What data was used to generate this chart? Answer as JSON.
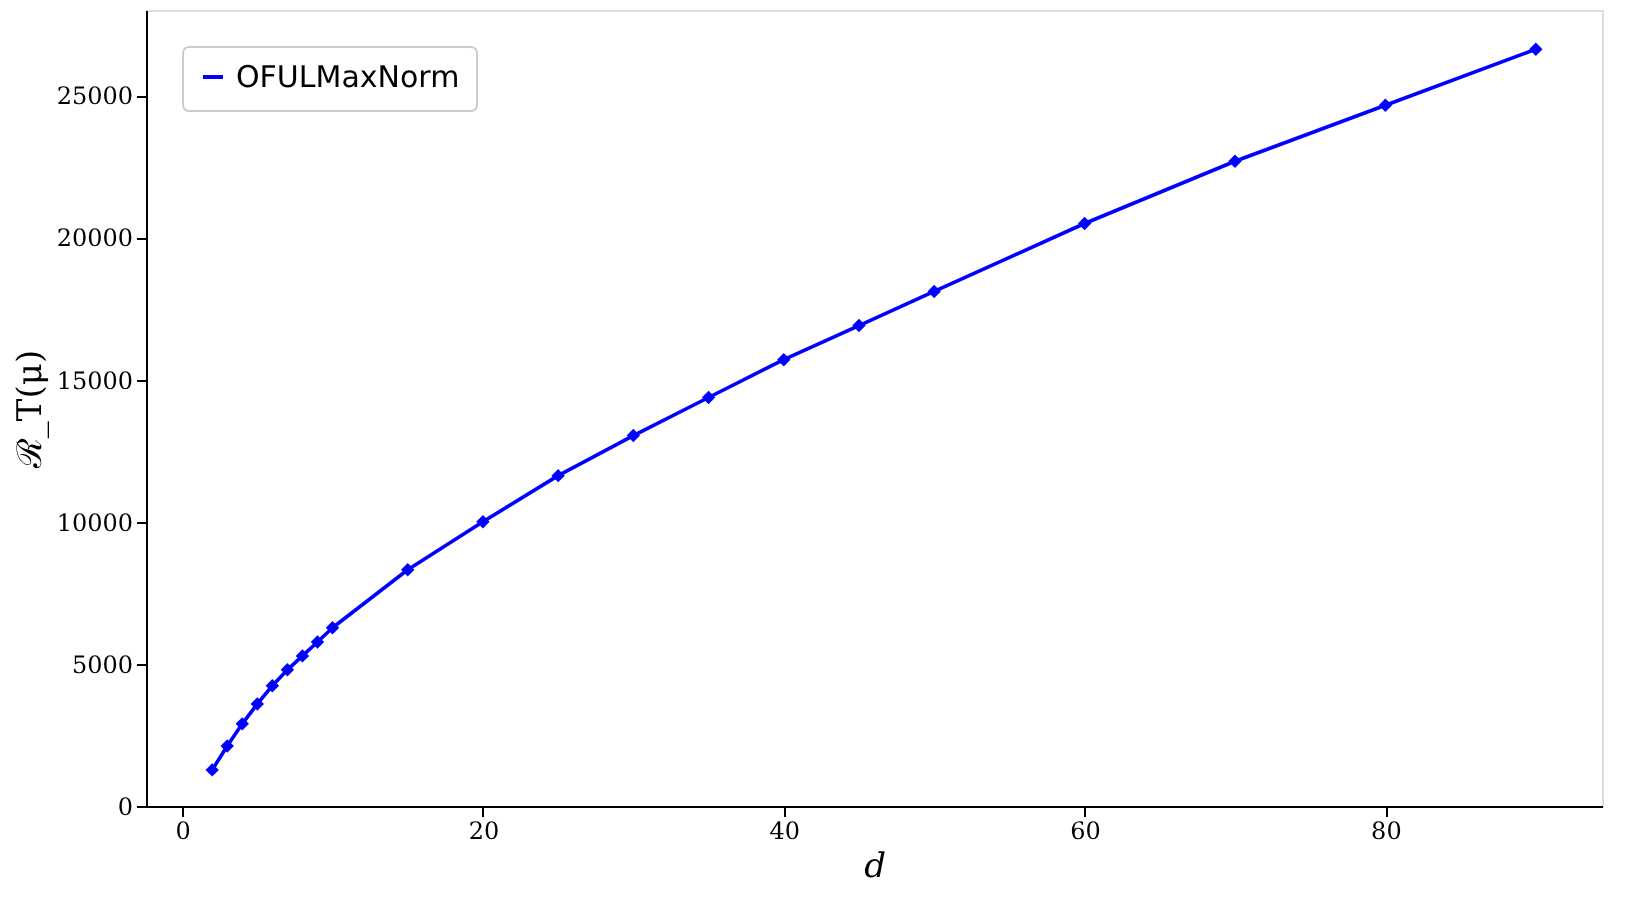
{
  "chart_data": {
    "type": "line",
    "xlabel": "d",
    "ylabel": "ℛ_T(μ)",
    "x": [
      2,
      3,
      4,
      5,
      6,
      7,
      8,
      9,
      10,
      15,
      20,
      25,
      30,
      35,
      40,
      45,
      50,
      60,
      70,
      80,
      90
    ],
    "series": [
      {
        "name": "OFULMaxNorm",
        "color": "#0000ff",
        "values": [
          1270,
          2110,
          2890,
          3590,
          4230,
          4790,
          5280,
          5770,
          6270,
          8310,
          10000,
          11620,
          13030,
          14370,
          15700,
          16900,
          18100,
          20490,
          22680,
          24650,
          26620
        ]
      }
    ],
    "xlim": [
      -2.4,
      94.4
    ],
    "ylim": [
      0,
      28000
    ],
    "xticks": [
      0,
      20,
      40,
      60,
      80
    ],
    "yticks": [
      0,
      5000,
      10000,
      15000,
      20000,
      25000
    ],
    "legend": "top left",
    "marker": "diamond",
    "line_style": "solid",
    "grid": false
  }
}
